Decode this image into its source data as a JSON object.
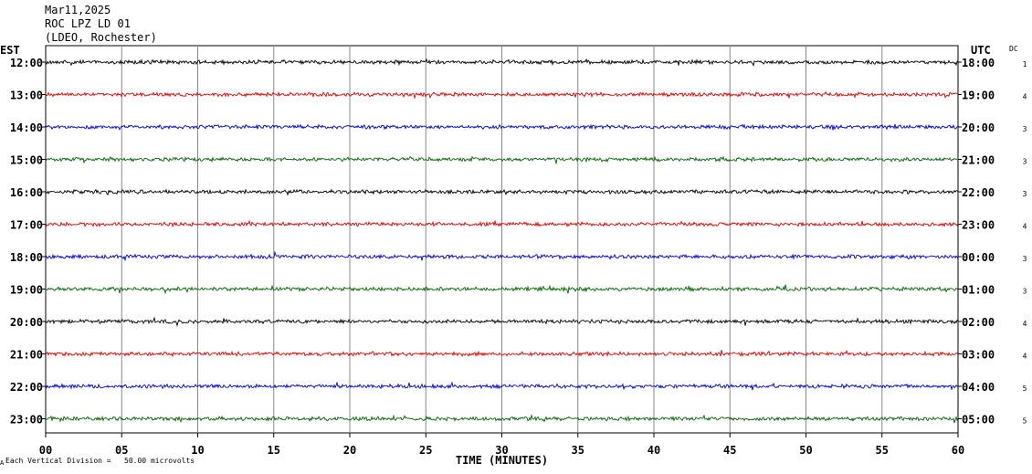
{
  "header": {
    "date": "Mar11,2025",
    "station": "ROC LPZ LD 01",
    "network": "(LDEO, Rochester)"
  },
  "left_zone_label": "EST",
  "right_zone_label": "UTC",
  "dc_label": "DC",
  "footer_mark": "A",
  "footer_note": "Each Vertical Division =   50.00 microvolts",
  "chart_data": {
    "type": "line",
    "title": "",
    "xlabel": "TIME (MINUTES)",
    "xlim": [
      0,
      60
    ],
    "x_ticks": [
      "00",
      "05",
      "10",
      "15",
      "20",
      "25",
      "30",
      "35",
      "40",
      "45",
      "50",
      "55",
      "60"
    ],
    "grid": "vertical lines every 5 minutes",
    "series": [
      {
        "left_time": "12:00",
        "right_time": "18:00",
        "dc": "1",
        "color": "#000000"
      },
      {
        "left_time": "13:00",
        "right_time": "19:00",
        "dc": "4",
        "color": "#dd0000"
      },
      {
        "left_time": "14:00",
        "right_time": "20:00",
        "dc": "3",
        "color": "#0000cc"
      },
      {
        "left_time": "15:00",
        "right_time": "21:00",
        "dc": "3",
        "color": "#006400"
      },
      {
        "left_time": "16:00",
        "right_time": "22:00",
        "dc": "3",
        "color": "#000000"
      },
      {
        "left_time": "17:00",
        "right_time": "23:00",
        "dc": "4",
        "color": "#dd0000"
      },
      {
        "left_time": "18:00",
        "right_time": "00:00",
        "dc": "3",
        "color": "#0000cc"
      },
      {
        "left_time": "19:00",
        "right_time": "01:00",
        "dc": "3",
        "color": "#006400"
      },
      {
        "left_time": "20:00",
        "right_time": "02:00",
        "dc": "4",
        "color": "#000000"
      },
      {
        "left_time": "21:00",
        "right_time": "03:00",
        "dc": "4",
        "color": "#dd0000"
      },
      {
        "left_time": "22:00",
        "right_time": "04:00",
        "dc": "5",
        "color": "#0000cc"
      },
      {
        "left_time": "23:00",
        "right_time": "05:00",
        "dc": "5",
        "color": "#006400"
      }
    ]
  }
}
